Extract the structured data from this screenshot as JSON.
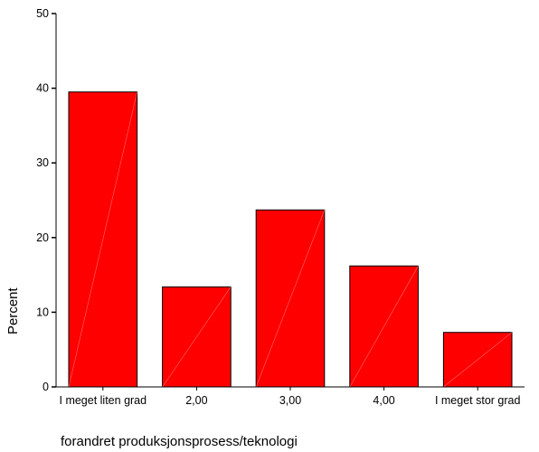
{
  "chart_data": {
    "type": "bar",
    "categories": [
      "I meget liten grad",
      "2,00",
      "3,00",
      "4,00",
      "I meget stor grad"
    ],
    "values": [
      39.5,
      13.4,
      23.7,
      16.2,
      7.3
    ],
    "title": "",
    "xlabel": "forandret produksjonsprosess/teknologi",
    "ylabel": "Percent",
    "ylim": [
      0,
      50
    ],
    "yticks": [
      0,
      10,
      20,
      30,
      40,
      50
    ],
    "grid": false,
    "bar_color": "#ff0000",
    "bar_edge_color": "#000000"
  }
}
